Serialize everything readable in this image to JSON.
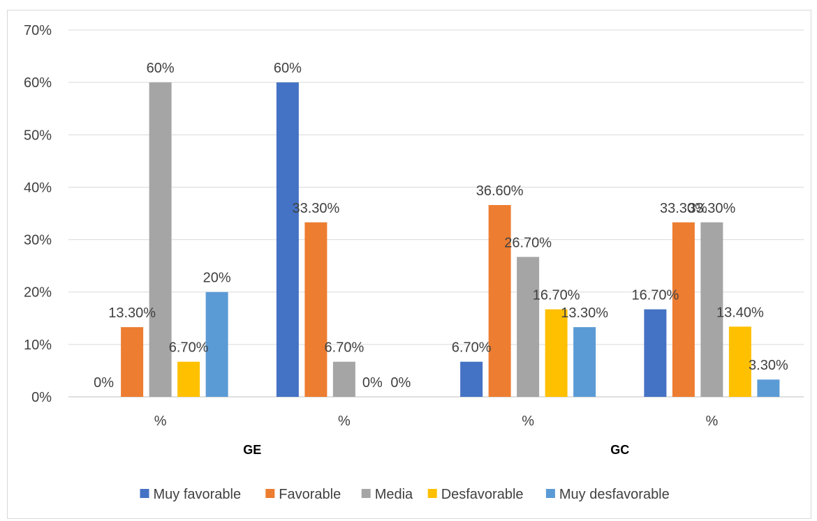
{
  "chart_data": {
    "type": "bar",
    "title": "",
    "xlabel": "",
    "ylabel": "",
    "ylim": [
      0,
      0.7
    ],
    "yticks": [
      0,
      0.1,
      0.2,
      0.3,
      0.4,
      0.5,
      0.6,
      0.7
    ],
    "ytick_labels": [
      "0%",
      "10%",
      "20%",
      "30%",
      "40%",
      "50%",
      "60%",
      "70%"
    ],
    "grid": "horizontal",
    "legend_position": "bottom",
    "categories": [
      "%",
      "%",
      "%",
      "%"
    ],
    "groups": [
      {
        "label": "GE",
        "span": [
          0,
          1
        ]
      },
      {
        "label": "GC",
        "span": [
          2,
          3
        ]
      }
    ],
    "series": [
      {
        "name": "Muy favorable",
        "color": "#4472C4",
        "values": [
          0,
          0.6,
          0.067,
          0.167
        ],
        "labels": [
          "0%",
          "60%",
          "6.70%",
          "16.70%"
        ]
      },
      {
        "name": "Favorable",
        "color": "#ED7D31",
        "values": [
          0.133,
          0.333,
          0.366,
          0.333
        ],
        "labels": [
          "13.30%",
          "33.30%",
          "36.60%",
          "33.30%"
        ]
      },
      {
        "name": "Media",
        "color": "#A5A5A5",
        "values": [
          0.6,
          0.067,
          0.267,
          0.333
        ],
        "labels": [
          "60%",
          "6.70%",
          "26.70%",
          "33.30%"
        ]
      },
      {
        "name": "Desfavorable",
        "color": "#FFC000",
        "values": [
          0.067,
          0,
          0.167,
          0.134
        ],
        "labels": [
          "6.70%",
          "0%",
          "16.70%",
          "13.40%"
        ]
      },
      {
        "name": "Muy desfavorable",
        "color": "#5B9BD5",
        "values": [
          0.2,
          0,
          0.133,
          0.033
        ],
        "labels": [
          "20%",
          "0%",
          "13.30%",
          "3.30%"
        ]
      }
    ]
  }
}
